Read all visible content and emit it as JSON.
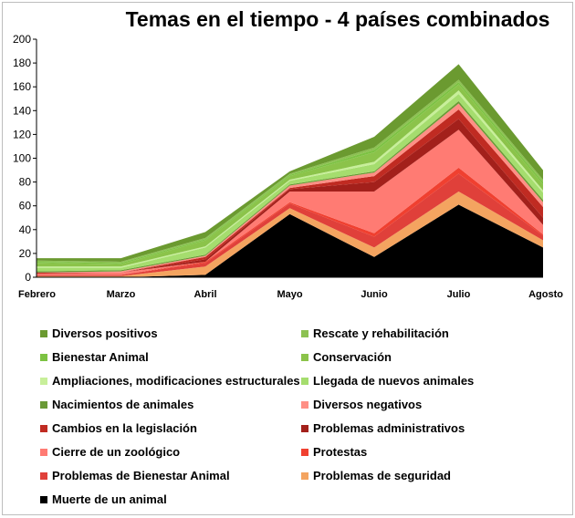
{
  "chart_data": {
    "type": "area",
    "stacked": true,
    "title": "Temas en el tiempo - 4 países combinados",
    "xlabel": "",
    "ylabel": "",
    "ylim": [
      0,
      200
    ],
    "yticks": [
      0,
      20,
      40,
      60,
      80,
      100,
      120,
      140,
      160,
      180,
      200
    ],
    "grid": false,
    "legend_position": "bottom",
    "categories": [
      "Febrero",
      "Marzo",
      "Abril",
      "Mayo",
      "Junio",
      "Julio",
      "Agosto"
    ],
    "series": [
      {
        "name": "Muerte de un animal",
        "color": "#000000",
        "values": [
          0,
          0,
          2,
          53,
          17,
          61,
          25
        ]
      },
      {
        "name": "Problemas de seguridad",
        "color": "#f4a460",
        "values": [
          1,
          1,
          7,
          5,
          8,
          11,
          6
        ]
      },
      {
        "name": "Problemas de Bienestar Animal",
        "color": "#e0403a",
        "values": [
          1,
          1,
          3,
          4,
          9,
          15,
          4
        ]
      },
      {
        "name": "Protestas",
        "color": "#f04030",
        "values": [
          0,
          0,
          1,
          1,
          3,
          5,
          1
        ]
      },
      {
        "name": "Cierre de un zoológico",
        "color": "#ff7b73",
        "values": [
          1,
          2,
          0,
          9,
          35,
          32,
          8
        ]
      },
      {
        "name": "Problemas administrativos",
        "color": "#a3201b",
        "values": [
          0,
          0,
          2,
          2,
          8,
          9,
          6
        ]
      },
      {
        "name": "Cambios en la legislación",
        "color": "#c02b22",
        "values": [
          1,
          0,
          2,
          1,
          5,
          8,
          9
        ]
      },
      {
        "name": "Diversos negativos",
        "color": "#ff8f85",
        "values": [
          0,
          1,
          1,
          2,
          3,
          5,
          4
        ]
      },
      {
        "name": "Nacimientos de animales",
        "color": "#6a9a36",
        "values": [
          1,
          1,
          1,
          1,
          1,
          2,
          2
        ]
      },
      {
        "name": "Llegada de nuevos animales",
        "color": "#a5dd6e",
        "values": [
          3,
          2,
          6,
          3,
          6,
          6,
          6
        ]
      },
      {
        "name": "Ampliaciones, modificaciones estructurales",
        "color": "#c8ef9a",
        "values": [
          1,
          1,
          1,
          1,
          2,
          3,
          2
        ]
      },
      {
        "name": "Conservación",
        "color": "#8bc34a",
        "values": [
          3,
          2,
          5,
          3,
          8,
          5,
          5
        ]
      },
      {
        "name": "Bienestar Animal",
        "color": "#7cc242",
        "values": [
          1,
          1,
          1,
          1,
          2,
          2,
          2
        ]
      },
      {
        "name": "Rescate y rehabilitación",
        "color": "#8cc152",
        "values": [
          1,
          1,
          1,
          1,
          2,
          2,
          2
        ]
      },
      {
        "name": "Diversos positivos",
        "color": "#6b9a30",
        "values": [
          2,
          3,
          5,
          2,
          9,
          13,
          8
        ]
      }
    ],
    "legend_order": [
      "Diversos positivos",
      "Rescate y rehabilitación",
      "Bienestar Animal",
      "Conservación",
      "Ampliaciones, modificaciones estructurales",
      "Llegada de nuevos animales",
      "Nacimientos de animales",
      "Diversos negativos",
      "Cambios en la legislación",
      "Problemas administrativos",
      "Cierre de un zoológico",
      "Protestas",
      "Problemas de Bienestar Animal",
      "Problemas de seguridad",
      "Muerte de un animal"
    ]
  }
}
